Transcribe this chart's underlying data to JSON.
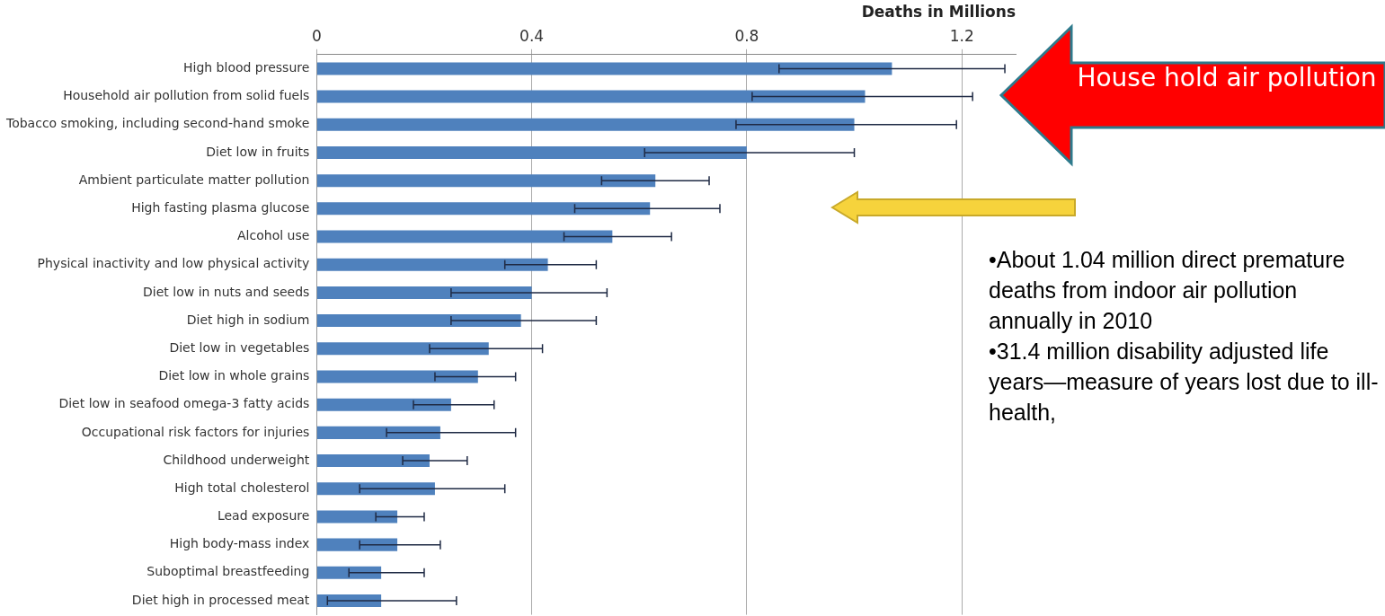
{
  "chart_data": {
    "type": "bar",
    "orientation": "horizontal",
    "title": "Deaths in Millions",
    "categories": [
      "High blood pressure",
      "Household air pollution from solid fuels",
      "Tobacco smoking, including second-hand smoke",
      "Diet low in fruits",
      "Ambient particulate matter pollution",
      "High fasting plasma glucose",
      "Alcohol use",
      "Physical inactivity and low physical activity",
      "Diet low in nuts and seeds",
      "Diet high in sodium",
      "Diet low in vegetables",
      "Diet low in whole grains",
      "Diet low in seafood omega-3 fatty acids",
      "Occupational risk factors for injuries",
      "Childhood underweight",
      "High total cholesterol",
      "Lead exposure",
      "High body-mass index",
      "Suboptimal breastfeeding",
      "Diet high in processed meat"
    ],
    "values": [
      1.07,
      1.02,
      1.0,
      0.8,
      0.63,
      0.62,
      0.55,
      0.43,
      0.4,
      0.38,
      0.32,
      0.3,
      0.25,
      0.23,
      0.21,
      0.22,
      0.15,
      0.15,
      0.12,
      0.12
    ],
    "errors": [
      [
        0.86,
        1.28
      ],
      [
        0.81,
        1.22
      ],
      [
        0.78,
        1.19
      ],
      [
        0.61,
        1.0
      ],
      [
        0.53,
        0.73
      ],
      [
        0.48,
        0.75
      ],
      [
        0.46,
        0.66
      ],
      [
        0.35,
        0.52
      ],
      [
        0.25,
        0.54
      ],
      [
        0.25,
        0.52
      ],
      [
        0.21,
        0.42
      ],
      [
        0.22,
        0.37
      ],
      [
        0.18,
        0.33
      ],
      [
        0.13,
        0.37
      ],
      [
        0.16,
        0.28
      ],
      [
        0.08,
        0.35
      ],
      [
        0.11,
        0.2
      ],
      [
        0.08,
        0.23
      ],
      [
        0.06,
        0.2
      ],
      [
        0.02,
        0.26
      ]
    ],
    "color": "#4f81bd",
    "xlim": [
      0,
      1.3
    ],
    "xticks": [
      0,
      0.4,
      0.8,
      1.2
    ],
    "grid": "x",
    "annotations": [
      "House hold air pollution",
      "•About 1.04 million direct premature deaths from indoor air pollution annually in 2010",
      "•31.4 million disability adjusted life years—measure of years lost due to ill-health,"
    ]
  }
}
